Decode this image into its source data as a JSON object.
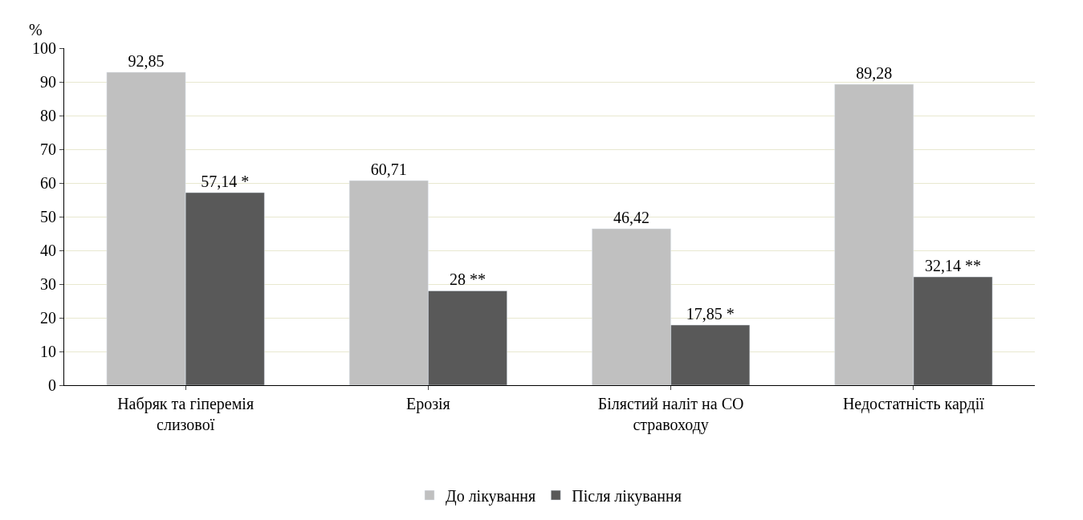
{
  "chart_data": {
    "type": "bar",
    "ylabel": "%",
    "categories": [
      "Набряк та гіперемія слизової",
      "Ерозія",
      "Білястий наліт на СО стравоходу",
      "Недостатність кардії"
    ],
    "series": [
      {
        "name": "До лікування",
        "color": "#c0c0c0",
        "values": [
          92.85,
          60.71,
          46.42,
          89.28
        ],
        "value_labels": [
          "92,85",
          "60,71",
          "46,42",
          "89,28"
        ]
      },
      {
        "name": "Після лікування",
        "color": "#595959",
        "values": [
          57.14,
          28,
          17.85,
          32.14
        ],
        "value_labels": [
          "57,14 *",
          "28 **",
          "17,85 *",
          "32,14 **"
        ]
      }
    ],
    "ylim": [
      0,
      100
    ],
    "yticks": [
      0,
      10,
      20,
      30,
      40,
      50,
      60,
      70,
      80,
      90,
      100
    ],
    "grid": "y",
    "legend": "bottom"
  }
}
